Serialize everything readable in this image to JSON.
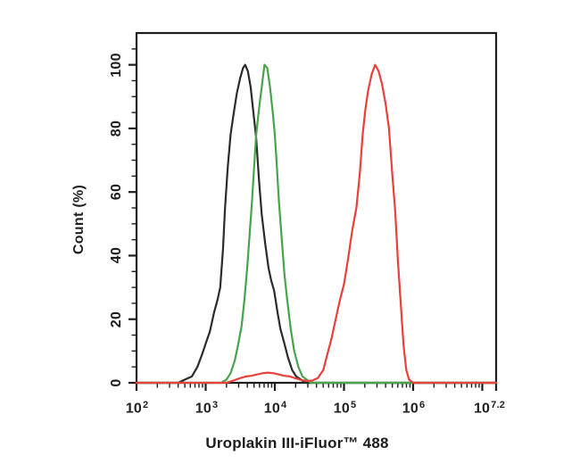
{
  "page": {
    "background_color": "#ffffff"
  },
  "chart_data": {
    "type": "line",
    "chart_kind": "flow-cytometry-histogram-overlay",
    "title": "",
    "xlabel": "Uroplakin III-iFluor™ 488",
    "ylabel": "Count (%)",
    "x_scale": "log10",
    "x_log_range": [
      2,
      7.2
    ],
    "ylim": [
      0,
      110
    ],
    "grid": "off",
    "legend": "none",
    "frame_color": "#1d1d1d",
    "text_color": "#1f1f1f",
    "y_ticks": [
      0,
      20,
      40,
      60,
      80,
      100
    ],
    "y_minor_step": 5,
    "x_major_ticks_log": [
      2,
      3,
      4,
      5,
      6,
      7,
      7.2
    ],
    "x_tick_labels": [
      {
        "base": "10",
        "exp": "2",
        "log": 2
      },
      {
        "base": "10",
        "exp": "3",
        "log": 3
      },
      {
        "base": "10",
        "exp": "4",
        "log": 4
      },
      {
        "base": "10",
        "exp": "5",
        "log": 5
      },
      {
        "base": "10",
        "exp": "6",
        "log": 6
      },
      {
        "base": "10",
        "exp": "7.2",
        "log": 7.2
      }
    ],
    "series": [
      {
        "name": "black",
        "color": "#2b2b2b",
        "peak_log10": 3.57,
        "peak_percent": 100,
        "points": [
          [
            2.0,
            0
          ],
          [
            2.6,
            0
          ],
          [
            2.7,
            1
          ],
          [
            2.8,
            2
          ],
          [
            2.88,
            5
          ],
          [
            2.95,
            9
          ],
          [
            3.01,
            13
          ],
          [
            3.06,
            16
          ],
          [
            3.12,
            22
          ],
          [
            3.17,
            26
          ],
          [
            3.21,
            30
          ],
          [
            3.25,
            42
          ],
          [
            3.28,
            55
          ],
          [
            3.32,
            68
          ],
          [
            3.36,
            78
          ],
          [
            3.4,
            84
          ],
          [
            3.45,
            91
          ],
          [
            3.5,
            96
          ],
          [
            3.54,
            99
          ],
          [
            3.57,
            100
          ],
          [
            3.61,
            98
          ],
          [
            3.65,
            93
          ],
          [
            3.69,
            85
          ],
          [
            3.73,
            77
          ],
          [
            3.77,
            64
          ],
          [
            3.81,
            53
          ],
          [
            3.86,
            44
          ],
          [
            3.91,
            36
          ],
          [
            3.95,
            32
          ],
          [
            3.99,
            29
          ],
          [
            4.04,
            22
          ],
          [
            4.08,
            17
          ],
          [
            4.13,
            13
          ],
          [
            4.19,
            8
          ],
          [
            4.25,
            4
          ],
          [
            4.31,
            2
          ],
          [
            4.38,
            1
          ],
          [
            4.44,
            0
          ],
          [
            7.2,
            0
          ]
        ]
      },
      {
        "name": "green",
        "color": "#47a44b",
        "peak_log10": 3.85,
        "peak_percent": 100,
        "points": [
          [
            2.0,
            0
          ],
          [
            3.22,
            0
          ],
          [
            3.3,
            1
          ],
          [
            3.36,
            3
          ],
          [
            3.42,
            7
          ],
          [
            3.47,
            12
          ],
          [
            3.52,
            18
          ],
          [
            3.56,
            26
          ],
          [
            3.6,
            36
          ],
          [
            3.64,
            48
          ],
          [
            3.67,
            57
          ],
          [
            3.7,
            68
          ],
          [
            3.73,
            78
          ],
          [
            3.77,
            86
          ],
          [
            3.81,
            93
          ],
          [
            3.85,
            100
          ],
          [
            3.89,
            99
          ],
          [
            3.93,
            93
          ],
          [
            3.97,
            85
          ],
          [
            4.0,
            78
          ],
          [
            4.03,
            68
          ],
          [
            4.06,
            57
          ],
          [
            4.1,
            45
          ],
          [
            4.14,
            34
          ],
          [
            4.18,
            26
          ],
          [
            4.23,
            17
          ],
          [
            4.28,
            10
          ],
          [
            4.34,
            5
          ],
          [
            4.4,
            2
          ],
          [
            4.46,
            1
          ],
          [
            4.52,
            0
          ],
          [
            7.2,
            0
          ]
        ]
      },
      {
        "name": "red",
        "color": "#e8403a",
        "peak_log10": 5.45,
        "peak_percent": 100,
        "points": [
          [
            2.0,
            0
          ],
          [
            3.3,
            0
          ],
          [
            3.4,
            0.7
          ],
          [
            3.5,
            1.5
          ],
          [
            3.58,
            2
          ],
          [
            3.66,
            2.2
          ],
          [
            3.74,
            2.6
          ],
          [
            3.82,
            3
          ],
          [
            3.9,
            3.2
          ],
          [
            3.98,
            3
          ],
          [
            4.06,
            2.6
          ],
          [
            4.14,
            2.2
          ],
          [
            4.22,
            2
          ],
          [
            4.3,
            1.4
          ],
          [
            4.38,
            0.9
          ],
          [
            4.46,
            0.6
          ],
          [
            4.54,
            0.7
          ],
          [
            4.62,
            1.5
          ],
          [
            4.7,
            4
          ],
          [
            4.76,
            9
          ],
          [
            4.82,
            14
          ],
          [
            4.88,
            20
          ],
          [
            4.94,
            26
          ],
          [
            5.0,
            31
          ],
          [
            5.06,
            39
          ],
          [
            5.12,
            48
          ],
          [
            5.18,
            55
          ],
          [
            5.23,
            66
          ],
          [
            5.27,
            78
          ],
          [
            5.31,
            86
          ],
          [
            5.35,
            92
          ],
          [
            5.4,
            97
          ],
          [
            5.45,
            100
          ],
          [
            5.5,
            98
          ],
          [
            5.55,
            94
          ],
          [
            5.6,
            88
          ],
          [
            5.65,
            80
          ],
          [
            5.7,
            65
          ],
          [
            5.74,
            54
          ],
          [
            5.78,
            38
          ],
          [
            5.82,
            25
          ],
          [
            5.86,
            12
          ],
          [
            5.9,
            4
          ],
          [
            5.94,
            1
          ],
          [
            6.0,
            0
          ],
          [
            7.2,
            0
          ]
        ]
      }
    ]
  }
}
